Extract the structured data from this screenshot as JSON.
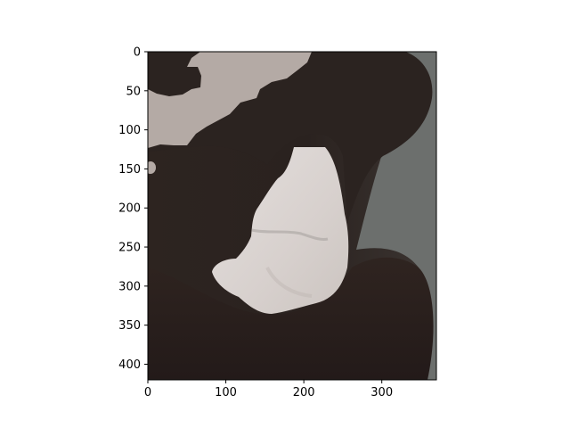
{
  "figure": {
    "title": "",
    "xlabel": "",
    "ylabel": ""
  },
  "axes": {
    "x_range": [
      0,
      370
    ],
    "y_range": [
      420,
      0
    ],
    "x_ticks": [
      0,
      100,
      200,
      300
    ],
    "y_ticks": [
      0,
      50,
      100,
      150,
      200,
      250,
      300,
      350,
      400
    ],
    "x_tick_labels": [
      "0",
      "100",
      "200",
      "300"
    ],
    "y_tick_labels": [
      "0",
      "50",
      "100",
      "150",
      "200",
      "250",
      "300",
      "350",
      "400"
    ]
  },
  "image_regions": [
    {
      "name": "background-wall",
      "color": "#b4aaa5"
    },
    {
      "name": "lips-and-skin",
      "color": "#2a221f"
    },
    {
      "name": "teeth",
      "color": "#d9d2cf"
    },
    {
      "name": "gray-backdrop",
      "color": "#6c6f6d"
    }
  ]
}
